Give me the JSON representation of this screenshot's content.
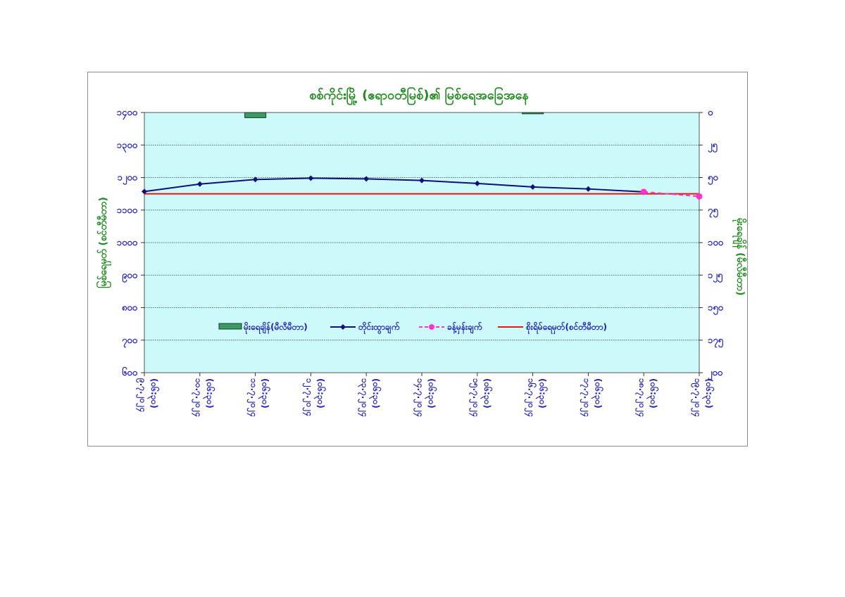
{
  "colors": {
    "plot_background": "#ccf9f9",
    "level_line": "#10107a",
    "forecast_line": "#ff33cc",
    "warning_line": "#ee1111",
    "rainfall_bar": "#3a9a64",
    "title_text": "#1e8a1e",
    "tick_text": "#1f1fb4"
  },
  "chart_data": {
    "type": "line",
    "title": "စစ်ကိုင်းမြို့ (ဧရာဝတီမြစ်)၏ မြစ်ရေအခြေအနေ",
    "ylabel_left": "မြစ်ရေမှတ် (စင်တီမီတာ)",
    "ylabel_right": "မိုးရေချိန် (မီလီမီတာ)",
    "ylim_left": [
      600,
      1400
    ],
    "ylim_right": [
      200,
      0
    ],
    "left_ticks": [
      "၁၄၀၀",
      "၁၃၀၀",
      "၁၂၀၀",
      "၁၁၀၀",
      "၁၀၀၀",
      "၉၀၀",
      "၈၀၀",
      "၇၀၀",
      "၆၀၀"
    ],
    "right_ticks": [
      "၀",
      "၂၅",
      "၅၀",
      "၇၅",
      "၁၀၀",
      "၁၂၅",
      "၁၅၀",
      "၁၇၅",
      "၂၀၀"
    ],
    "categories": [
      [
        "၉.၇.၂၀၂၄",
        "(၀၆:၃၀)"
      ],
      [
        "၁၀.၇.၂၀၂၄",
        "(၀၆:၃၀)"
      ],
      [
        "၁၁.၇.၂၀၂၄",
        "(၀၆:၃၀)"
      ],
      [
        "၁၂.၇.၂၀၂၄",
        "(၀၆:၃၀)"
      ],
      [
        "၁၃.၇.၂၀၂၄",
        "(၀၆:၃၀)"
      ],
      [
        "၁၄.၇.၂၀၂၄",
        "(၀၆:၃၀)"
      ],
      [
        "၁၅.၇.၂၀၂၄",
        "(၀၆:၃၀)"
      ],
      [
        "၁၆.၇.၂၀၂၄",
        "(၀၆:၃၀)"
      ],
      [
        "၁၇.၇.၂၀၂၄",
        "(၀၆:၃၀)"
      ],
      [
        "၁၈.၇.၂၀၂၄",
        "(၀၆:၃၀)"
      ],
      [
        "၁၉.၇.၂၀၂၄",
        "(၀၆:၃၀)"
      ]
    ],
    "rainfall": [
      null,
      null,
      4,
      null,
      null,
      null,
      null,
      1,
      null,
      null,
      null
    ],
    "level": [
      1157,
      1180,
      1194,
      1198,
      1196,
      1191,
      1182,
      1171,
      1165,
      1156,
      null
    ],
    "forecast": [
      null,
      null,
      null,
      null,
      null,
      null,
      null,
      null,
      null,
      1156,
      1142
    ],
    "warning_level": 1150,
    "legend": [
      "မိုးရေချိန်(မီလီမီတာ)",
      "တိုင်းထွာချက်",
      "ခန့်မှန်းချက်",
      "စိုးရိမ်ရေမှတ်(စင်တီမီတာ)"
    ],
    "legend_position": "center",
    "grid": true
  }
}
